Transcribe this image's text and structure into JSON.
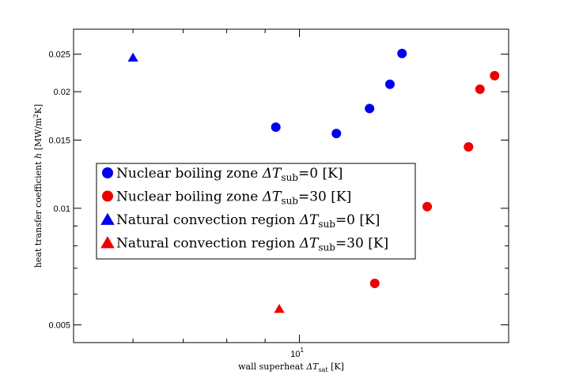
{
  "chart_data": {
    "type": "scatter",
    "xlabel": {
      "text": "wall superheat ",
      "math": "ΔT",
      "sub": "sat",
      "unit": " [K]"
    },
    "ylabel": {
      "text": "heat transfer coefficient ",
      "math": "h",
      "unit_pre": " [MW/m",
      "unit_sup": "2",
      "unit_post": "K]"
    },
    "x_scale": "log",
    "y_scale": "log",
    "xlim": [
      5.0,
      19.0
    ],
    "ylim": [
      0.0045,
      0.029
    ],
    "x_ticks": [
      {
        "value": 10,
        "base": "10",
        "exp": "1"
      }
    ],
    "x_minor_ticks": [
      6,
      7,
      8,
      9,
      20
    ],
    "y_ticks": [
      {
        "value": 0.005,
        "label": "0.005"
      },
      {
        "value": 0.01,
        "label": "0.01"
      },
      {
        "value": 0.015,
        "label": "0.015"
      },
      {
        "value": 0.02,
        "label": "0.02"
      },
      {
        "value": 0.025,
        "label": "0.025"
      }
    ],
    "y_minor_ticks": [
      0.006,
      0.007,
      0.008,
      0.009
    ],
    "grid": false,
    "legend_placement": "center-left",
    "series": [
      {
        "name": "Nuclear boiling zone",
        "subscript_value": "=0 [K]",
        "marker": "circle",
        "color": "#0000ee",
        "points": [
          {
            "x": 9.3,
            "y": 0.0162
          },
          {
            "x": 11.2,
            "y": 0.0156
          },
          {
            "x": 12.4,
            "y": 0.0181
          },
          {
            "x": 13.2,
            "y": 0.0209
          },
          {
            "x": 13.7,
            "y": 0.0251
          }
        ]
      },
      {
        "name": "Nuclear boiling zone",
        "subscript_value": "=30 [K]",
        "marker": "circle",
        "color": "#ee0000",
        "points": [
          {
            "x": 12.6,
            "y": 0.0064
          },
          {
            "x": 14.8,
            "y": 0.0101
          },
          {
            "x": 16.8,
            "y": 0.0144
          },
          {
            "x": 17.4,
            "y": 0.0203
          },
          {
            "x": 18.2,
            "y": 0.022
          }
        ]
      },
      {
        "name": "Natural convection region",
        "subscript_value": "=0 [K]",
        "marker": "triangle",
        "color": "#0000ee",
        "points": [
          {
            "x": 6.0,
            "y": 0.0245
          }
        ]
      },
      {
        "name": "Natural convection region",
        "subscript_value": "=30 [K]",
        "marker": "triangle",
        "color": "#ee0000",
        "points": [
          {
            "x": 9.4,
            "y": 0.0055
          }
        ]
      }
    ],
    "legend_math": {
      "prefix": "ΔT",
      "sub": "sub"
    }
  }
}
